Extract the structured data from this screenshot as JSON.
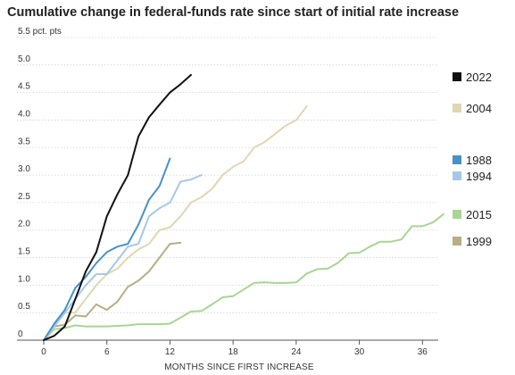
{
  "title": "Cumulative change in federal-funds rate since start of initial rate increase",
  "chart_data": {
    "type": "line",
    "title": "Cumulative change in federal-funds rate since start of initial rate increase",
    "xlabel": "MONTHS SINCE FIRST INCREASE",
    "ylabel": "",
    "y_unit_label": "5.5 pct. pts",
    "xlim": [
      0,
      37.5
    ],
    "ylim": [
      0,
      5.5
    ],
    "x_ticks": [
      0,
      6,
      12,
      18,
      24,
      30,
      36
    ],
    "y_ticks": [
      0,
      0.5,
      1.0,
      1.5,
      2.0,
      2.5,
      3.0,
      3.5,
      4.0,
      4.5,
      5.0,
      5.5
    ],
    "y_tick_labels": [
      "0",
      "0.5",
      "1.0",
      "1.5",
      "2.0",
      "2.5",
      "3.0",
      "3.5",
      "4.0",
      "4.5",
      "5.0",
      "5.5 pct. pts"
    ],
    "grid": "horizontal",
    "legend_position": "right",
    "series": [
      {
        "name": "2022",
        "color": "#111111",
        "x": [
          0,
          1,
          2,
          3,
          4,
          5,
          6,
          7,
          8,
          9,
          10,
          11,
          12,
          13,
          14
        ],
        "y": [
          0,
          0.08,
          0.25,
          0.75,
          1.25,
          1.6,
          2.25,
          2.65,
          3.0,
          3.7,
          4.05,
          4.28,
          4.5,
          4.65,
          4.82
        ]
      },
      {
        "name": "2004",
        "color": "#dcd8b4",
        "x": [
          0,
          1,
          2,
          3,
          4,
          5,
          6,
          7,
          8,
          9,
          10,
          11,
          12,
          13,
          14,
          15,
          16,
          17,
          18,
          19,
          20,
          21,
          22,
          23,
          24,
          25
        ],
        "y": [
          0,
          0.25,
          0.5,
          0.5,
          0.75,
          1.0,
          1.2,
          1.3,
          1.5,
          1.65,
          1.75,
          2.0,
          2.05,
          2.25,
          2.5,
          2.6,
          2.75,
          3.0,
          3.15,
          3.25,
          3.5,
          3.6,
          3.75,
          3.9,
          4.0,
          4.25
        ]
      },
      {
        "name": "1988",
        "color": "#4a90c8",
        "x": [
          0,
          1,
          2,
          3,
          4,
          5,
          6,
          7,
          8,
          9,
          10,
          11,
          12
        ],
        "y": [
          0,
          0.3,
          0.55,
          0.95,
          1.15,
          1.4,
          1.6,
          1.7,
          1.75,
          2.1,
          2.55,
          2.8,
          3.3
        ]
      },
      {
        "name": "1994",
        "color": "#a6c8e6",
        "x": [
          0,
          1,
          2,
          3,
          4,
          5,
          6,
          7,
          8,
          9,
          10,
          11,
          12,
          13,
          14,
          15
        ],
        "y": [
          0,
          0.25,
          0.5,
          0.75,
          1.0,
          1.2,
          1.2,
          1.45,
          1.7,
          1.75,
          2.25,
          2.4,
          2.5,
          2.88,
          2.92,
          3.0
        ]
      },
      {
        "name": "2015",
        "color": "#a9d494",
        "x": [
          0,
          1,
          2,
          3,
          4,
          5,
          6,
          7,
          8,
          9,
          10,
          11,
          12,
          13,
          14,
          15,
          16,
          17,
          18,
          19,
          20,
          21,
          22,
          23,
          24,
          25,
          26,
          27,
          28,
          29,
          30,
          31,
          32,
          33,
          34,
          35,
          36,
          37,
          38
        ],
        "y": [
          0,
          0.2,
          0.22,
          0.27,
          0.25,
          0.25,
          0.25,
          0.26,
          0.27,
          0.29,
          0.29,
          0.29,
          0.3,
          0.41,
          0.52,
          0.53,
          0.65,
          0.78,
          0.8,
          0.92,
          1.04,
          1.05,
          1.04,
          1.04,
          1.05,
          1.21,
          1.29,
          1.3,
          1.41,
          1.58,
          1.59,
          1.7,
          1.79,
          1.79,
          1.83,
          2.07,
          2.07,
          2.14,
          2.29
        ]
      },
      {
        "name": "1999",
        "color": "#b5ae86",
        "x": [
          0,
          1,
          2,
          3,
          4,
          5,
          6,
          7,
          8,
          9,
          10,
          11,
          12,
          13
        ],
        "y": [
          0,
          0.25,
          0.28,
          0.45,
          0.43,
          0.65,
          0.55,
          0.7,
          0.97,
          1.08,
          1.25,
          1.5,
          1.75,
          1.77
        ]
      }
    ]
  }
}
